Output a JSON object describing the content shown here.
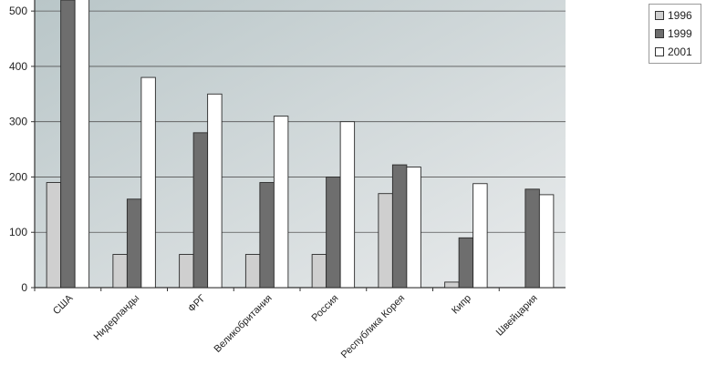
{
  "chart_data": {
    "type": "bar",
    "categories": [
      "США",
      "Нидерланды",
      "ФРГ",
      "Великобритания",
      "Россия",
      "Республика Корея",
      "Кипр",
      "Швейцария"
    ],
    "series": [
      {
        "name": "1996",
        "color": "#cfcfcf",
        "values": [
          190,
          60,
          60,
          60,
          60,
          170,
          10,
          0
        ]
      },
      {
        "name": "1999",
        "color": "#6e6e6e",
        "values": [
          520,
          160,
          280,
          190,
          200,
          222,
          90,
          178
        ]
      },
      {
        "name": "2001",
        "color": "#ffffff",
        "values": [
          560,
          380,
          350,
          310,
          300,
          218,
          188,
          168
        ]
      }
    ],
    "y_ticks": [
      "0",
      "100",
      "200",
      "300",
      "400",
      "500"
    ],
    "ylim": [
      0,
      520
    ],
    "grid": true,
    "legend_position": "top-right",
    "title": "",
    "xlabel": "",
    "ylabel": "",
    "plot_background": [
      "#b9c6c8",
      "#e9ebec"
    ],
    "bar_outline": "#2a2a2a"
  }
}
